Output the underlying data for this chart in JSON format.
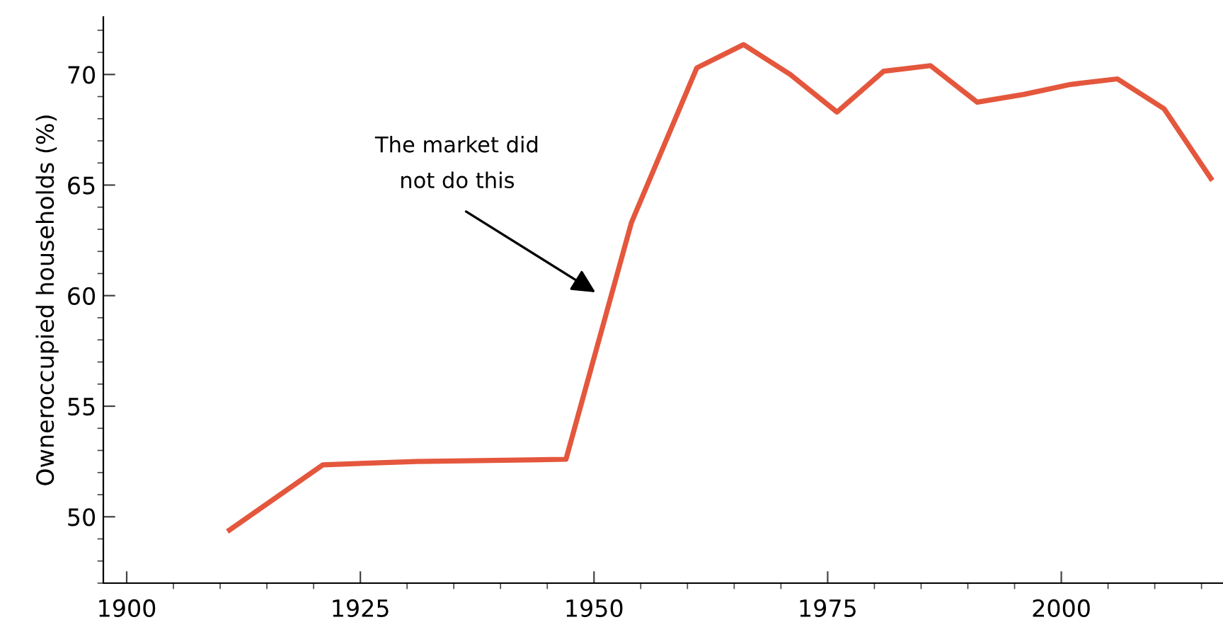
{
  "chart_data": {
    "type": "line",
    "ylabel": "Owneroccupied households (%)",
    "x": [
      1911,
      1921,
      1931,
      1947,
      1954,
      1961,
      1966,
      1971,
      1976,
      1981,
      1986,
      1991,
      1996,
      2001,
      2006,
      2011,
      2016
    ],
    "series": [
      {
        "color": "#e4573d",
        "values": [
          49.4,
          52.35,
          52.5,
          52.6,
          63.3,
          70.3,
          71.35,
          70.0,
          68.3,
          70.15,
          70.4,
          68.75,
          69.1,
          69.55,
          69.8,
          68.45,
          65.3
        ]
      }
    ],
    "xlim": [
      1897.5,
      2017.3
    ],
    "xticks": [
      1900,
      1925,
      1950,
      1975,
      2000
    ],
    "ylim": [
      47.0,
      72.6
    ],
    "yticks": [
      50,
      55,
      60,
      65,
      70
    ],
    "annotations": [
      "The market did\nnot do this"
    ],
    "grid": false,
    "legend": false,
    "marker": "none",
    "line_style": "solid"
  }
}
